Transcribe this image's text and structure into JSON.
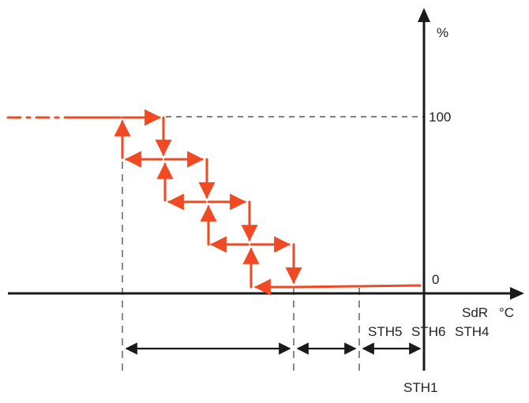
{
  "axes": {
    "y_unit": "%",
    "y_max_label": "100",
    "y_zero_label": "0",
    "x_unit_left": "SdR",
    "x_unit_right": "°C"
  },
  "thresholds": {
    "sth5": "STH5",
    "sth6": "STH6",
    "sth4": "STH4",
    "sth1": "STH1"
  },
  "colors": {
    "curve": "#ef4a23",
    "axis": "#1a1a1a",
    "dash": "#555555"
  },
  "icons": {
    "axis_arrows": "triangle-arrowheads",
    "dimension_arrows": "double-headed-arrows"
  }
}
